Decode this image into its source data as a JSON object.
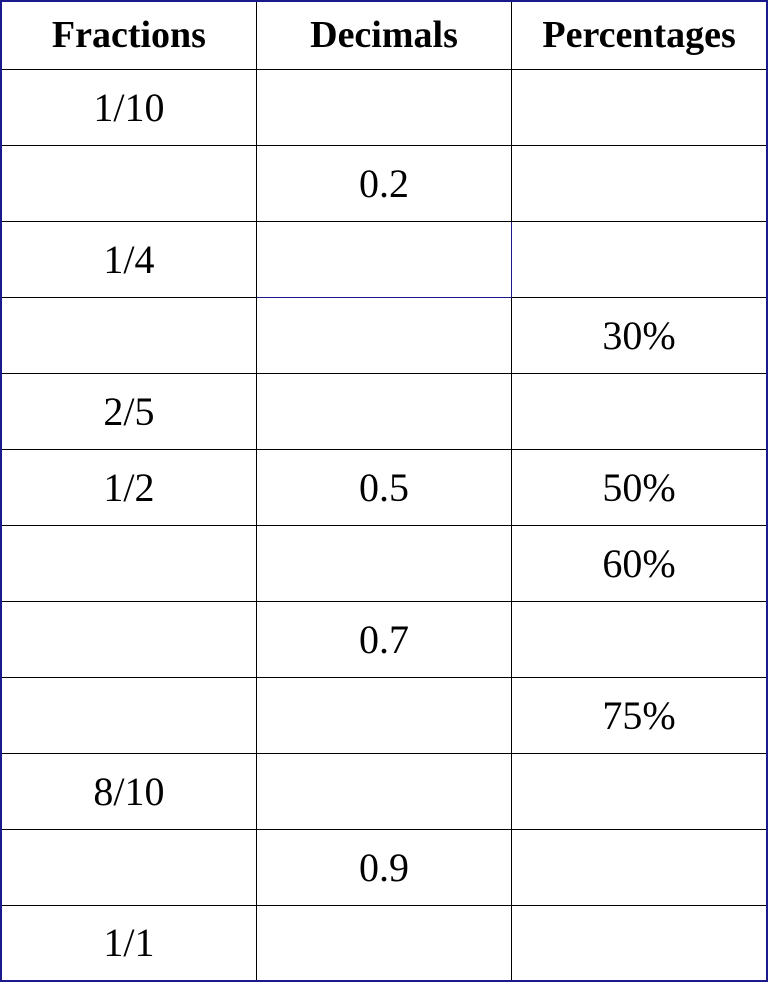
{
  "table": {
    "type": "table",
    "columns": [
      "Fractions",
      "Decimals",
      "Percentages"
    ],
    "rows": [
      [
        "1/10",
        "",
        ""
      ],
      [
        "",
        "0.2",
        ""
      ],
      [
        "1/4",
        "",
        ""
      ],
      [
        "",
        "",
        "30%"
      ],
      [
        "2/5",
        "",
        ""
      ],
      [
        "1/2",
        "0.5",
        "50%"
      ],
      [
        "",
        "",
        "60%"
      ],
      [
        "",
        "0.7",
        ""
      ],
      [
        "",
        "",
        "75%"
      ],
      [
        "8/10",
        "",
        ""
      ],
      [
        "",
        "0.9",
        ""
      ],
      [
        "1/1",
        "",
        ""
      ]
    ],
    "header_fontsize": 38,
    "cell_fontsize": 40,
    "header_fontweight": "bold",
    "font_family": "Times New Roman",
    "outer_border_color": "#1a1a8a",
    "inner_border_color": "#000000",
    "background_color": "#ffffff",
    "text_color": "#000000",
    "column_widths": [
      "33.3%",
      "33.3%",
      "33.3%"
    ],
    "text_align": "center",
    "highlight_cell": {
      "row": 2,
      "col": 1,
      "border_color": "#1a1a8a"
    }
  }
}
